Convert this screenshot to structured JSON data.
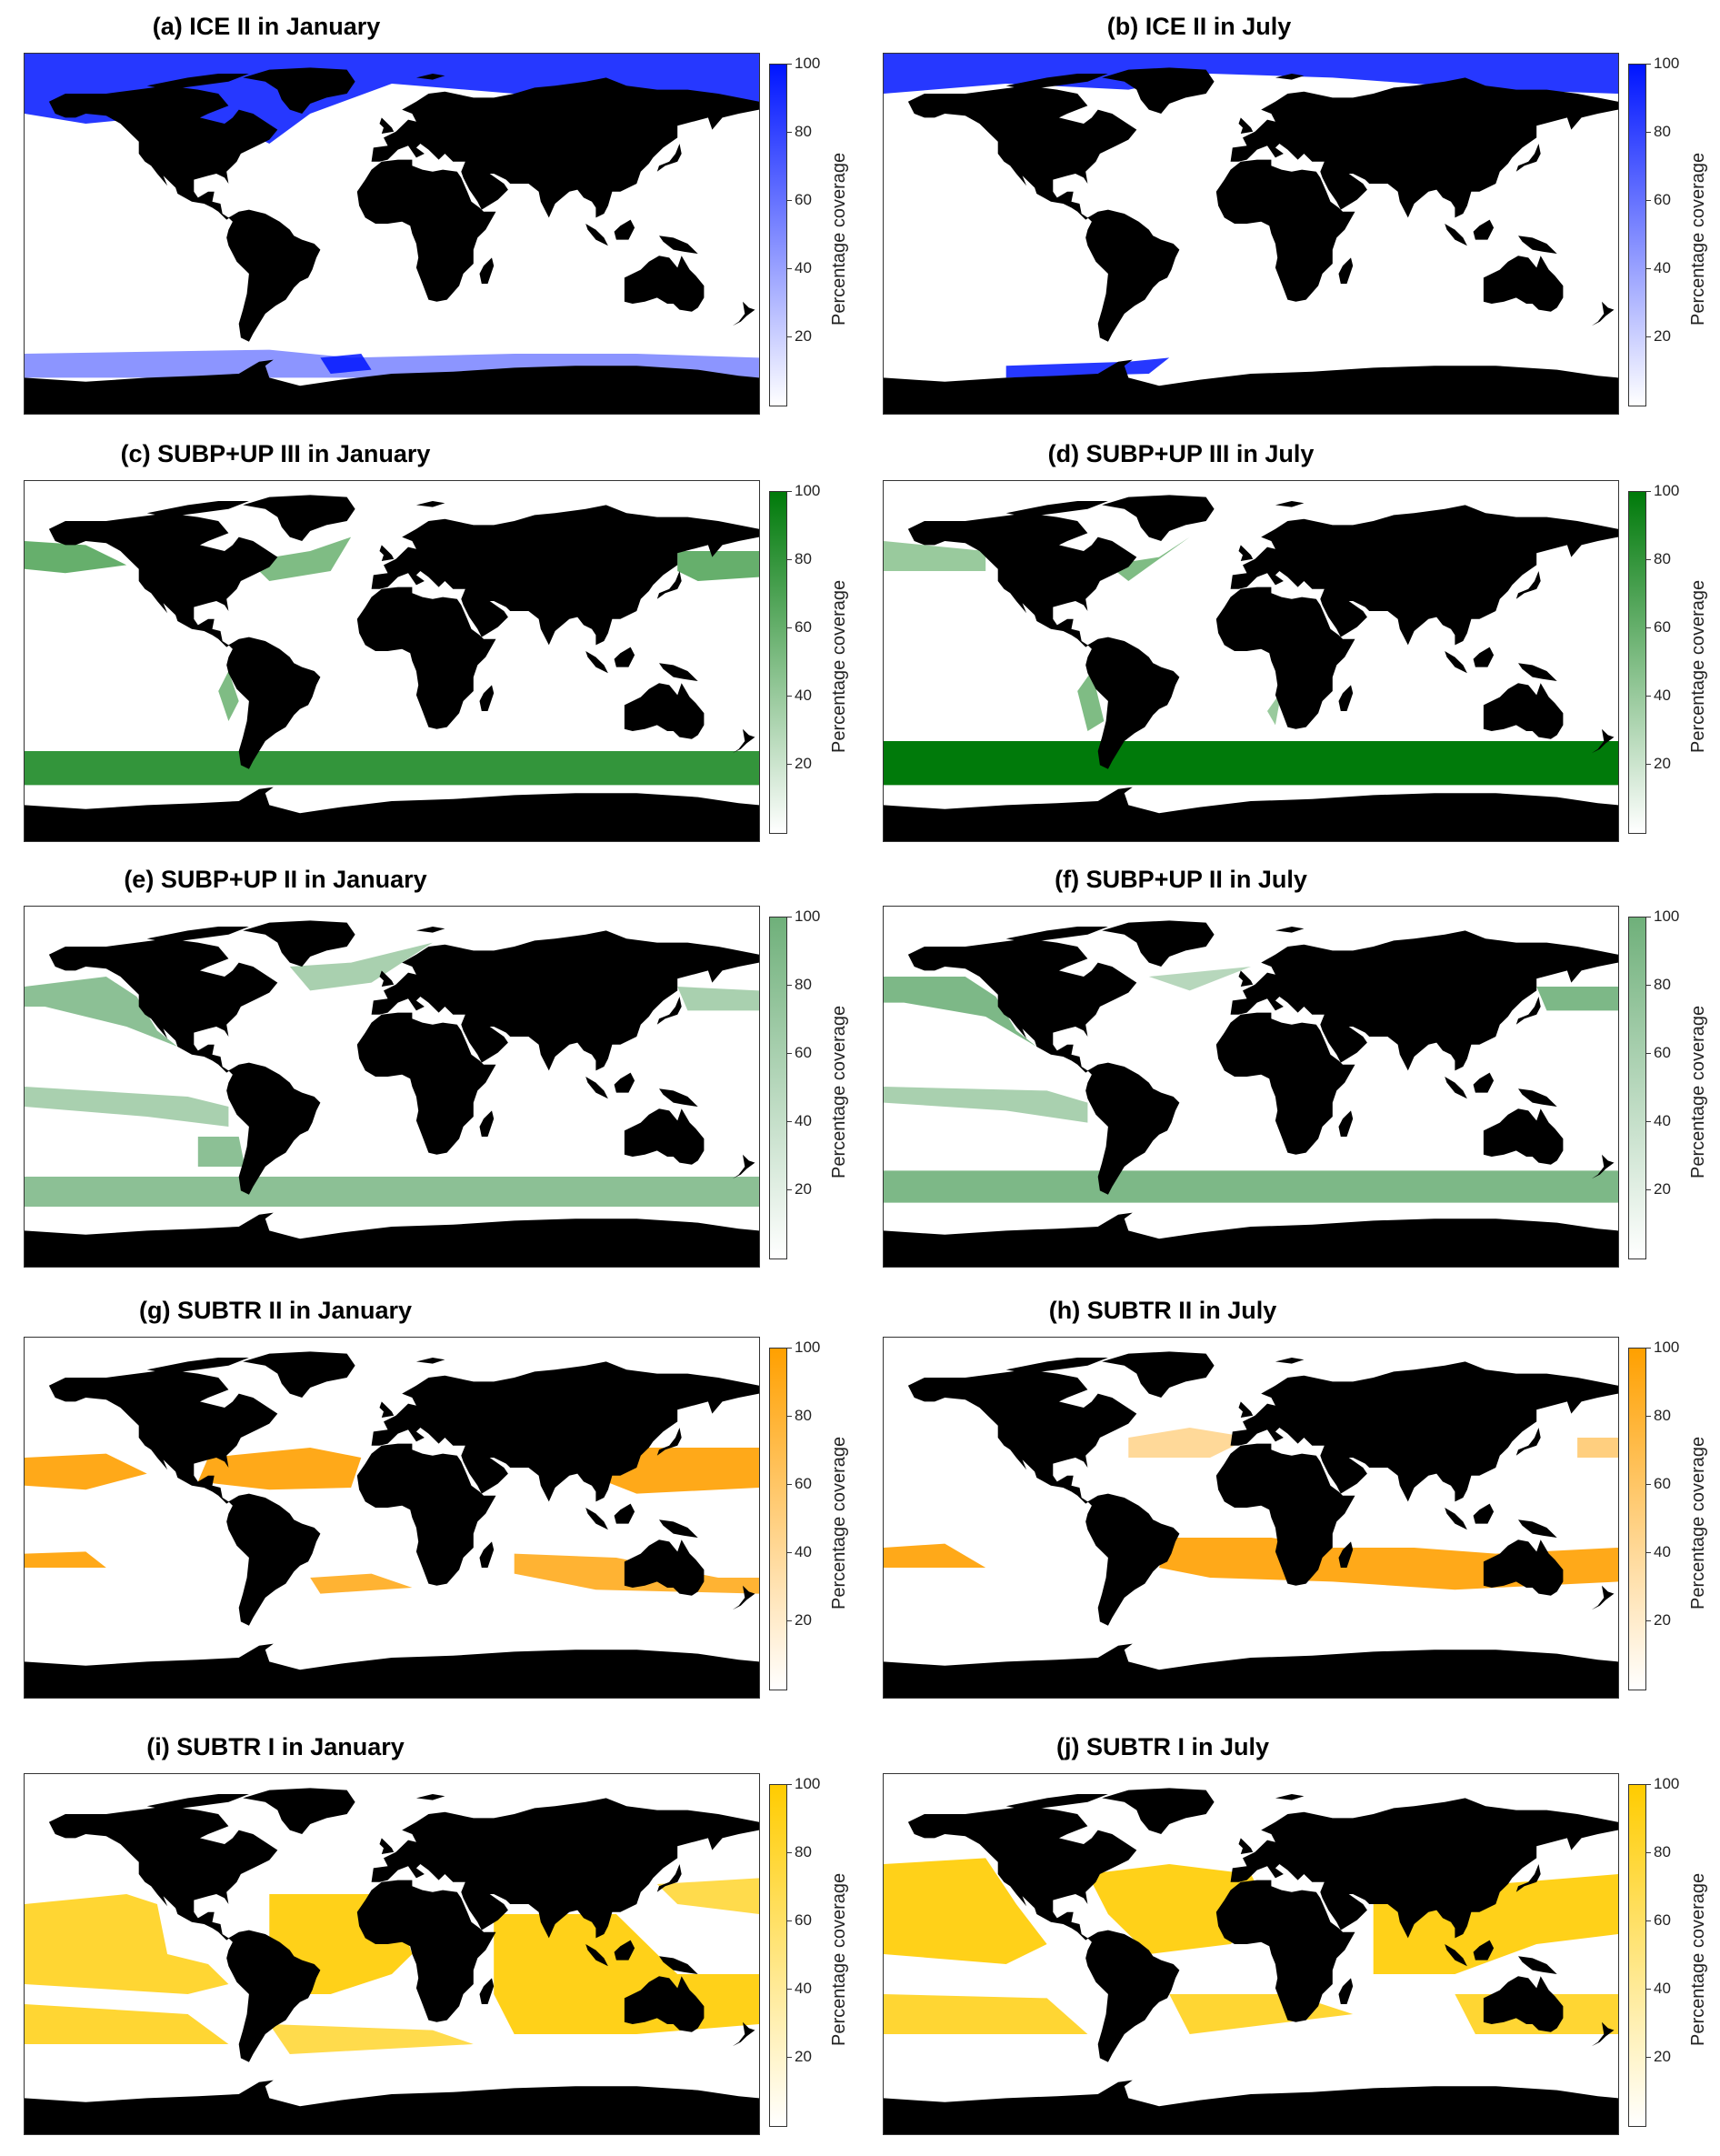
{
  "colorbar": {
    "label": "Percentage coverage",
    "ticks": [
      "100",
      "80",
      "60",
      "40",
      "20"
    ]
  },
  "panels": [
    {
      "title": "(a) ICE II in January",
      "color": "#0015ff",
      "variable": "ICE II",
      "month": "January"
    },
    {
      "title": "(b) ICE II in July",
      "color": "#0015ff",
      "variable": "ICE II",
      "month": "July"
    },
    {
      "title": "(c) SUBP+UP III in January",
      "color": "#007a0a",
      "variable": "SUBP+UP III",
      "month": "January"
    },
    {
      "title": "(d) SUBP+UP III in July",
      "color": "#007a0a",
      "variable": "SUBP+UP III",
      "month": "July"
    },
    {
      "title": "(e) SUBP+UP II in January",
      "color": "#6fb07a",
      "variable": "SUBP+UP II",
      "month": "January"
    },
    {
      "title": "(f) SUBP+UP II in July",
      "color": "#6fb07a",
      "variable": "SUBP+UP II",
      "month": "July"
    },
    {
      "title": "(g) SUBTR II in January",
      "color": "#ffa000",
      "variable": "SUBTR II",
      "month": "January"
    },
    {
      "title": "(h) SUBTR II in July",
      "color": "#ffa000",
      "variable": "SUBTR II",
      "month": "July"
    },
    {
      "title": "(i) SUBTR I in January",
      "color": "#ffcc00",
      "variable": "SUBTR I",
      "month": "January"
    },
    {
      "title": "(j) SUBTR I in July",
      "color": "#ffcc00",
      "variable": "SUBTR I",
      "month": "July"
    }
  ],
  "land_color": "#000000",
  "ocean_color": "#ffffff"
}
